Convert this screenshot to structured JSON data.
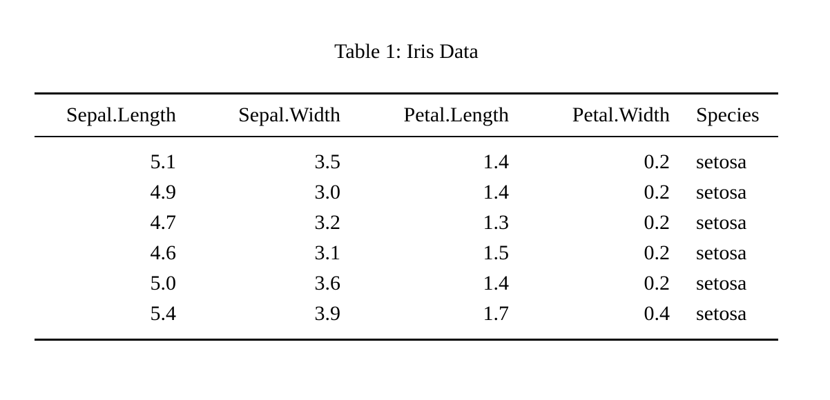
{
  "page": {
    "background_color": "#ffffff",
    "text_color": "#000000"
  },
  "table": {
    "caption": "Table 1: Iris Data",
    "columns": [
      {
        "label": "Sepal.Length",
        "align": "right"
      },
      {
        "label": "Sepal.Width",
        "align": "right"
      },
      {
        "label": "Petal.Length",
        "align": "right"
      },
      {
        "label": "Petal.Width",
        "align": "right"
      },
      {
        "label": "Species",
        "align": "left"
      }
    ],
    "rows": [
      [
        "5.1",
        "3.5",
        "1.4",
        "0.2",
        "setosa"
      ],
      [
        "4.9",
        "3.0",
        "1.4",
        "0.2",
        "setosa"
      ],
      [
        "4.7",
        "3.2",
        "1.3",
        "0.2",
        "setosa"
      ],
      [
        "4.6",
        "3.1",
        "1.5",
        "0.2",
        "setosa"
      ],
      [
        "5.0",
        "3.6",
        "1.4",
        "0.2",
        "setosa"
      ],
      [
        "5.4",
        "3.9",
        "1.7",
        "0.4",
        "setosa"
      ]
    ]
  }
}
